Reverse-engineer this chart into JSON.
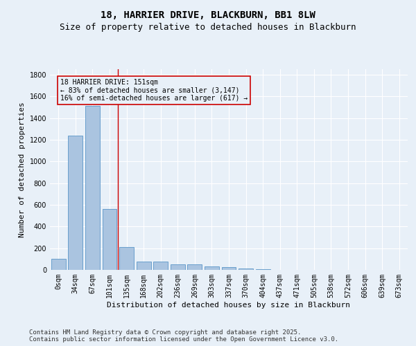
{
  "title": "18, HARRIER DRIVE, BLACKBURN, BB1 8LW",
  "subtitle": "Size of property relative to detached houses in Blackburn",
  "xlabel": "Distribution of detached houses by size in Blackburn",
  "ylabel": "Number of detached properties",
  "categories": [
    "0sqm",
    "34sqm",
    "67sqm",
    "101sqm",
    "135sqm",
    "168sqm",
    "202sqm",
    "236sqm",
    "269sqm",
    "303sqm",
    "337sqm",
    "370sqm",
    "404sqm",
    "437sqm",
    "471sqm",
    "505sqm",
    "538sqm",
    "572sqm",
    "606sqm",
    "639sqm",
    "673sqm"
  ],
  "values": [
    100,
    1240,
    1510,
    560,
    210,
    75,
    75,
    50,
    50,
    35,
    25,
    15,
    8,
    3,
    1,
    1,
    0,
    0,
    0,
    0,
    0
  ],
  "bar_color": "#aac4e0",
  "bar_edge_color": "#5a96c8",
  "property_line_color": "#cc0000",
  "annotation_text": "18 HARRIER DRIVE: 151sqm\n← 83% of detached houses are smaller (3,147)\n16% of semi-detached houses are larger (617) →",
  "annotation_box_color": "#cc0000",
  "ylim": [
    0,
    1850
  ],
  "yticks": [
    0,
    200,
    400,
    600,
    800,
    1000,
    1200,
    1400,
    1600,
    1800
  ],
  "footer_line1": "Contains HM Land Registry data © Crown copyright and database right 2025.",
  "footer_line2": "Contains public sector information licensed under the Open Government Licence v3.0.",
  "bg_color": "#e8f0f8",
  "grid_color": "#ffffff",
  "title_fontsize": 10,
  "subtitle_fontsize": 9,
  "axis_fontsize": 8,
  "tick_fontsize": 7,
  "footer_fontsize": 6.5
}
